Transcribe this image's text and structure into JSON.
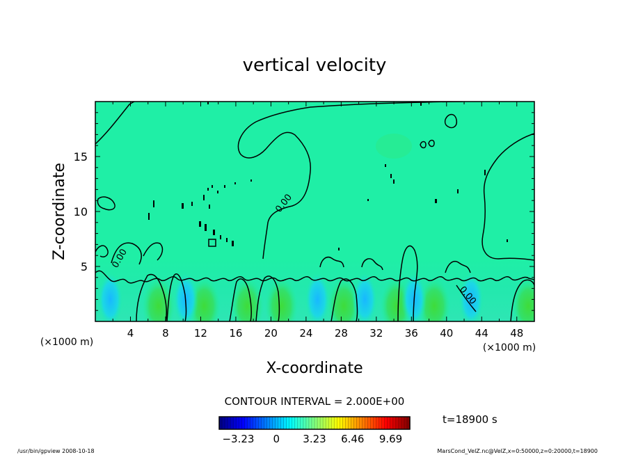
{
  "chart_data": {
    "type": "heatmap",
    "title": "vertical velocity",
    "xlabel": "X-coordinate",
    "ylabel": "Z-coordinate",
    "x_unit_left": "(×1000 m)",
    "x_unit_right": "(×1000 m)",
    "xlim": [
      0,
      50
    ],
    "ylim": [
      0,
      20
    ],
    "xticks": [
      4,
      8,
      12,
      16,
      20,
      24,
      28,
      32,
      36,
      40,
      44,
      48
    ],
    "yticks": [
      5,
      10,
      15
    ],
    "contour_interval_text": "CONTOUR INTERVAL = 2.000E+00",
    "contour_labels": [
      "0.00",
      "0.00",
      "0.00"
    ],
    "time_text": "t=18900 s",
    "colorbar": {
      "ticks": [
        "-3.23",
        "0",
        "3.23",
        "6.46",
        "9.69"
      ],
      "range": [
        -4.85,
        11.31
      ]
    },
    "background_value_color": "#1fefa6",
    "footer_left": "/usr/bin/gpview   2008-10-18",
    "footer_right": "MarsCond_VelZ.nc@VelZ,x=0:50000,z=0:20000,t=18900",
    "plumes_x": [
      7.2,
      12.4,
      17.3,
      21.2,
      28.3,
      34.3,
      38.6,
      49.3
    ],
    "downdrafts_x": [
      1.7,
      10.3,
      25.3,
      30.7,
      36.3,
      42.8
    ]
  }
}
